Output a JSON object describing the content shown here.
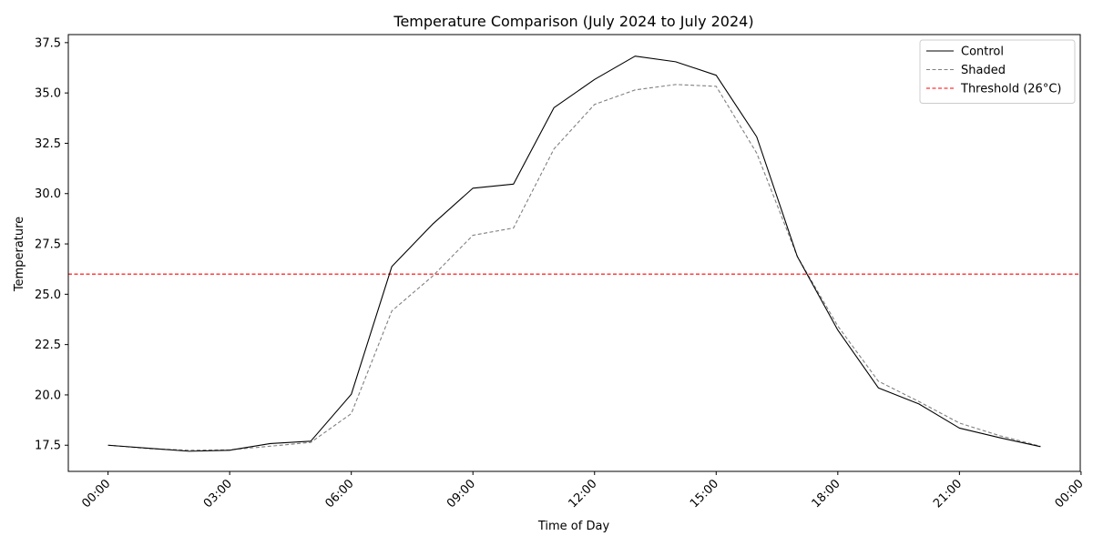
{
  "chart_data": {
    "type": "line",
    "title": "Temperature Comparison (July 2024 to July 2024)",
    "xlabel": "Time of Day",
    "ylabel": "Temperature",
    "x_unit": "hours",
    "xlim": [
      -0.98,
      23.98
    ],
    "ylim": [
      16.2,
      37.9
    ],
    "x_ticks": [
      {
        "value": 0,
        "label": "00:00"
      },
      {
        "value": 3,
        "label": "03:00"
      },
      {
        "value": 6,
        "label": "06:00"
      },
      {
        "value": 9,
        "label": "09:00"
      },
      {
        "value": 12,
        "label": "12:00"
      },
      {
        "value": 15,
        "label": "15:00"
      },
      {
        "value": 18,
        "label": "18:00"
      },
      {
        "value": 21,
        "label": "21:00"
      },
      {
        "value": 24,
        "label": "00:00"
      }
    ],
    "y_ticks": [
      {
        "value": 17.5,
        "label": "17.5"
      },
      {
        "value": 20.0,
        "label": "20.0"
      },
      {
        "value": 22.5,
        "label": "22.5"
      },
      {
        "value": 25.0,
        "label": "25.0"
      },
      {
        "value": 27.5,
        "label": "27.5"
      },
      {
        "value": 30.0,
        "label": "30.0"
      },
      {
        "value": 32.5,
        "label": "32.5"
      },
      {
        "value": 35.0,
        "label": "35.0"
      },
      {
        "value": 37.5,
        "label": "37.5"
      }
    ],
    "x": [
      0,
      1,
      2,
      3,
      4,
      5,
      6,
      7,
      8,
      9,
      10,
      11,
      12,
      13,
      14,
      15,
      16,
      17,
      18,
      19,
      20,
      21,
      22,
      23
    ],
    "series": [
      {
        "name": "Control",
        "color": "#000000",
        "style": "solid",
        "values": [
          17.5,
          17.35,
          17.2,
          17.25,
          17.58,
          17.7,
          20.03,
          26.38,
          28.47,
          30.27,
          30.47,
          34.27,
          35.67,
          36.83,
          36.55,
          35.88,
          32.82,
          26.88,
          23.22,
          20.35,
          19.55,
          18.35,
          17.87,
          17.43
        ]
      },
      {
        "name": "Shaded",
        "color": "#808080",
        "style": "dashed",
        "values": [
          17.5,
          17.33,
          17.25,
          17.27,
          17.45,
          17.64,
          19.07,
          24.17,
          25.89,
          27.93,
          28.29,
          32.22,
          34.43,
          35.15,
          35.42,
          35.33,
          32.01,
          26.88,
          23.42,
          20.68,
          19.67,
          18.6,
          17.97,
          17.45
        ]
      }
    ],
    "thresholds": [
      {
        "name": "Threshold (26°C)",
        "value": 26,
        "color": "#ff0000",
        "style": "dashed"
      }
    ],
    "legend_placement": "top-right",
    "grid": false
  }
}
